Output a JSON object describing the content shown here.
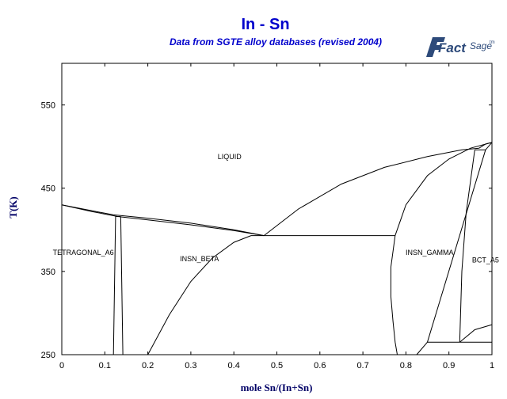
{
  "header": {
    "title": "In - Sn",
    "subtitle": "Data from SGTE alloy databases (revised 2004)"
  },
  "logo": {
    "brand": "Fact",
    "suffix": "Sage",
    "mark": "tm"
  },
  "chart_data": {
    "type": "line",
    "title": "In - Sn",
    "subtitle": "Data from SGTE alloy databases (revised 2004)",
    "xlabel": "mole Sn/(In+Sn)",
    "ylabel": "T(K)",
    "xlim": [
      0,
      1
    ],
    "ylim": [
      250,
      600
    ],
    "x_ticks": [
      0,
      0.1,
      0.2,
      0.3,
      0.4,
      0.5,
      0.6,
      0.7,
      0.8,
      0.9,
      1
    ],
    "x_tick_labels": [
      "0",
      "0.1",
      "0.2",
      "0.3",
      "0.4",
      "0.5",
      "0.6",
      "0.7",
      "0.8",
      "0.9",
      "1"
    ],
    "y_ticks": [
      250,
      350,
      450,
      550
    ],
    "y_tick_labels": [
      "250",
      "350",
      "450",
      "550"
    ],
    "grid": false,
    "line_color": "#000000",
    "phase_labels": [
      {
        "text": "LIQUID",
        "x": 0.39,
        "y": 485
      },
      {
        "text": "TETRAGONAL_A6",
        "x": 0.05,
        "y": 370
      },
      {
        "text": "INSN_BETA",
        "x": 0.32,
        "y": 362
      },
      {
        "text": "INSN_GAMMA",
        "x": 0.855,
        "y": 370
      },
      {
        "text": "BCT_A5",
        "x": 0.985,
        "y": 361
      }
    ],
    "series": [
      {
        "values": [
          [
            0,
            430
          ],
          [
            0.07,
            422
          ],
          [
            0.13,
            416
          ],
          [
            0.2,
            412
          ],
          [
            0.3,
            406
          ],
          [
            0.4,
            399
          ],
          [
            0.47,
            393
          ]
        ]
      },
      {
        "values": [
          [
            0,
            430
          ],
          [
            0.06,
            424
          ],
          [
            0.12,
            418
          ],
          [
            0.2,
            414
          ],
          [
            0.3,
            408
          ],
          [
            0.4,
            400
          ],
          [
            0.47,
            393
          ]
        ]
      },
      {
        "values": [
          [
            0.47,
            393
          ],
          [
            0.55,
            425
          ],
          [
            0.65,
            455
          ],
          [
            0.75,
            475
          ],
          [
            0.85,
            488
          ],
          [
            0.93,
            496
          ],
          [
            0.97,
            498
          ]
        ]
      },
      {
        "values": [
          [
            0.97,
            498
          ],
          [
            0.985,
            503
          ],
          [
            1,
            505
          ]
        ]
      },
      {
        "values": [
          [
            0.125,
            416
          ],
          [
            0.137,
            416
          ]
        ]
      },
      {
        "values": [
          [
            0.125,
            416
          ],
          [
            0.12,
            250
          ]
        ]
      },
      {
        "values": [
          [
            0.137,
            416
          ],
          [
            0.142,
            250
          ]
        ]
      },
      {
        "values": [
          [
            0.2,
            250
          ],
          [
            0.25,
            298
          ],
          [
            0.3,
            338
          ],
          [
            0.35,
            366
          ],
          [
            0.4,
            385
          ],
          [
            0.44,
            393
          ]
        ]
      },
      {
        "values": [
          [
            0.44,
            393
          ],
          [
            0.775,
            393
          ]
        ]
      },
      {
        "values": [
          [
            0.775,
            393
          ],
          [
            0.765,
            355
          ],
          [
            0.765,
            320
          ],
          [
            0.77,
            290
          ],
          [
            0.775,
            265
          ],
          [
            0.78,
            250
          ]
        ]
      },
      {
        "values": [
          [
            0.775,
            393
          ],
          [
            0.8,
            430
          ],
          [
            0.85,
            465
          ],
          [
            0.9,
            485
          ],
          [
            0.95,
            498
          ],
          [
            1,
            505
          ]
        ]
      },
      {
        "values": [
          [
            0.96,
            496
          ],
          [
            0.985,
            496
          ]
        ]
      },
      {
        "values": [
          [
            0.985,
            496
          ],
          [
            0.85,
            265
          ]
        ]
      },
      {
        "values": [
          [
            0.96,
            496
          ],
          [
            0.94,
            420
          ],
          [
            0.93,
            350
          ],
          [
            0.925,
            265
          ]
        ]
      },
      {
        "values": [
          [
            0.85,
            265
          ],
          [
            1,
            265
          ]
        ]
      },
      {
        "values": [
          [
            0.825,
            250
          ],
          [
            0.85,
            265
          ]
        ]
      },
      {
        "values": [
          [
            0.925,
            265
          ],
          [
            0.96,
            280
          ],
          [
            1,
            286
          ]
        ]
      },
      {
        "values": [
          [
            0.985,
            496
          ],
          [
            1,
            505
          ]
        ]
      }
    ]
  }
}
